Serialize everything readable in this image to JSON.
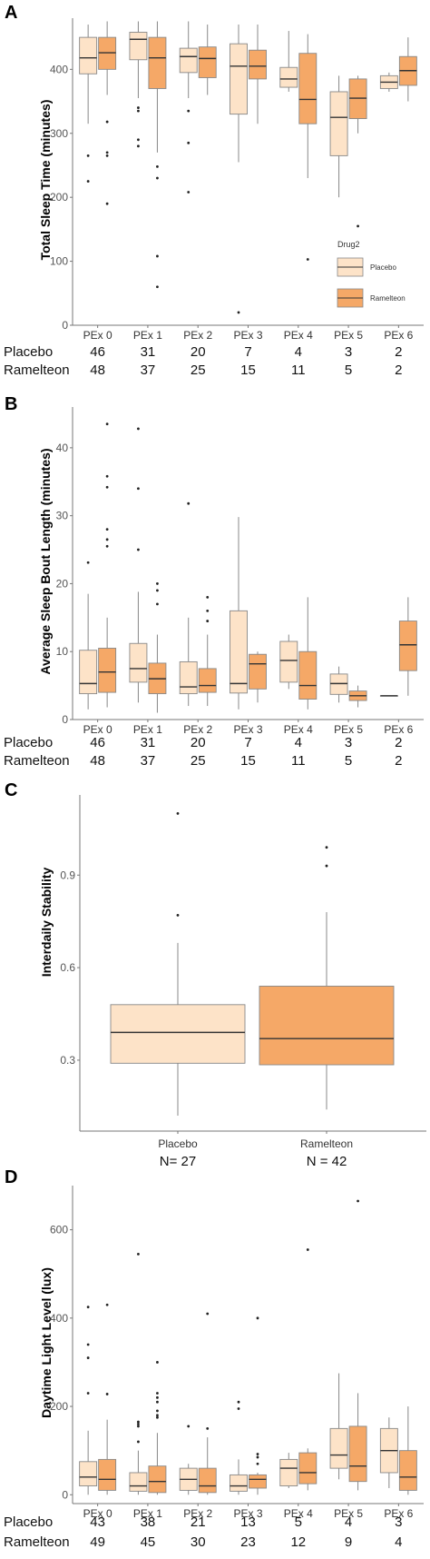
{
  "colors": {
    "placebo": "#fde3c8",
    "ramelteon": "#f5a867",
    "whisker": "#888888",
    "median": "#333333",
    "axis": "#777777"
  },
  "chart_data": [
    {
      "panel": "A",
      "type": "box",
      "ylabel": "Total Sleep Time (minutes)",
      "ylim": [
        0,
        480
      ],
      "yticks": [
        0,
        100,
        200,
        300,
        400
      ],
      "categories": [
        "PEx 0",
        "PEx 1",
        "PEx 2",
        "PEx 3",
        "PEx 4",
        "PEx 5",
        "PEx 6"
      ],
      "legend": {
        "title": "Drug2",
        "position": "right"
      },
      "series": [
        {
          "name": "Placebo",
          "color": "#fde3c8",
          "boxes": [
            {
              "min": 315,
              "q1": 393,
              "median": 418,
              "q3": 450,
              "max": 470,
              "outliers": [
                265,
                225
              ]
            },
            {
              "min": 355,
              "q1": 415,
              "median": 447,
              "q3": 458,
              "max": 475,
              "outliers": [
                340,
                335,
                290,
                280
              ]
            },
            {
              "min": 355,
              "q1": 395,
              "median": 420,
              "q3": 433,
              "max": 475,
              "outliers": [
                335,
                285,
                208
              ]
            },
            {
              "min": 255,
              "q1": 330,
              "median": 405,
              "q3": 440,
              "max": 470,
              "outliers": [
                20
              ]
            },
            {
              "min": 365,
              "q1": 372,
              "median": 385,
              "q3": 403,
              "max": 460,
              "outliers": []
            },
            {
              "min": 200,
              "q1": 265,
              "median": 325,
              "q3": 365,
              "max": 390,
              "outliers": []
            },
            {
              "min": 365,
              "q1": 370,
              "median": 380,
              "q3": 390,
              "max": 395,
              "outliers": []
            }
          ]
        },
        {
          "name": "Ramelteon",
          "color": "#f5a867",
          "boxes": [
            {
              "min": 360,
              "q1": 400,
              "median": 426,
              "q3": 450,
              "max": 475,
              "outliers": [
                318,
                270,
                265,
                190
              ]
            },
            {
              "min": 270,
              "q1": 370,
              "median": 418,
              "q3": 450,
              "max": 475,
              "outliers": [
                248,
                230,
                108,
                60
              ]
            },
            {
              "min": 360,
              "q1": 387,
              "median": 417,
              "q3": 435,
              "max": 470,
              "outliers": []
            },
            {
              "min": 315,
              "q1": 385,
              "median": 405,
              "q3": 430,
              "max": 470,
              "outliers": []
            },
            {
              "min": 230,
              "q1": 315,
              "median": 353,
              "q3": 425,
              "max": 455,
              "outliers": [
                103
              ]
            },
            {
              "min": 300,
              "q1": 323,
              "median": 355,
              "q3": 385,
              "max": 390,
              "outliers": [
                155
              ]
            },
            {
              "min": 350,
              "q1": 375,
              "median": 398,
              "q3": 420,
              "max": 450,
              "outliers": []
            }
          ]
        }
      ],
      "counts": {
        "Placebo": [
          "46",
          "31",
          "20",
          "7",
          "4",
          "3",
          "2"
        ],
        "Ramelteon": [
          "48",
          "37",
          "25",
          "15",
          "11",
          "5",
          "2"
        ]
      }
    },
    {
      "panel": "B",
      "type": "box",
      "ylabel": "Average Sleep Bout Length (minutes)",
      "ylim": [
        0,
        46
      ],
      "yticks": [
        0,
        10,
        20,
        30,
        40
      ],
      "categories": [
        "PEx 0",
        "PEx 1",
        "PEx 2",
        "PEx 3",
        "PEx 4",
        "PEx 5",
        "PEx 6"
      ],
      "series": [
        {
          "name": "Placebo",
          "color": "#fde3c8",
          "boxes": [
            {
              "min": 1.5,
              "q1": 3.8,
              "median": 5.3,
              "q3": 10.2,
              "max": 18.5,
              "outliers": [
                23.1
              ]
            },
            {
              "min": 2.5,
              "q1": 5.5,
              "median": 7.5,
              "q3": 11.2,
              "max": 18.8,
              "outliers": [
                42.8,
                34,
                25
              ]
            },
            {
              "min": 2,
              "q1": 3.8,
              "median": 4.8,
              "q3": 8.5,
              "max": 15,
              "outliers": [
                31.8
              ]
            },
            {
              "min": 1.5,
              "q1": 3.9,
              "median": 5.3,
              "q3": 16,
              "max": 29.8,
              "outliers": []
            },
            {
              "min": 4.5,
              "q1": 5.5,
              "median": 8.7,
              "q3": 11.5,
              "max": 12.5,
              "outliers": []
            },
            {
              "min": 2.5,
              "q1": 3.7,
              "median": 5.3,
              "q3": 6.7,
              "max": 7.8,
              "outliers": []
            },
            {
              "min": 3.5,
              "q1": 3.5,
              "median": 3.5,
              "q3": 3.5,
              "max": 3.5,
              "outliers": []
            }
          ]
        },
        {
          "name": "Ramelteon",
          "color": "#f5a867",
          "boxes": [
            {
              "min": 1.8,
              "q1": 4,
              "median": 7,
              "q3": 10.5,
              "max": 15,
              "outliers": [
                43.5,
                35.8,
                34.2,
                28,
                26.5,
                25.5
              ]
            },
            {
              "min": 1,
              "q1": 3.8,
              "median": 6,
              "q3": 8.3,
              "max": 12.5,
              "outliers": [
                20,
                19,
                17
              ]
            },
            {
              "min": 2,
              "q1": 4,
              "median": 5,
              "q3": 7.5,
              "max": 12.5,
              "outliers": [
                18,
                16,
                14.5
              ]
            },
            {
              "min": 2.5,
              "q1": 4.5,
              "median": 8.2,
              "q3": 9.6,
              "max": 10,
              "outliers": []
            },
            {
              "min": 1.5,
              "q1": 3,
              "median": 5,
              "q3": 10,
              "max": 18,
              "outliers": []
            },
            {
              "min": 1.8,
              "q1": 2.8,
              "median": 3.5,
              "q3": 4.2,
              "max": 5,
              "outliers": []
            },
            {
              "min": 3.5,
              "q1": 7.2,
              "median": 11,
              "q3": 14.5,
              "max": 18,
              "outliers": []
            }
          ]
        }
      ],
      "counts": {
        "Placebo": [
          "46",
          "31",
          "20",
          "7",
          "4",
          "3",
          "2"
        ],
        "Ramelteon": [
          "48",
          "37",
          "25",
          "15",
          "11",
          "5",
          "2"
        ]
      }
    },
    {
      "panel": "C",
      "type": "box",
      "ylabel": "Interdaily Stability",
      "ylim": [
        0.07,
        1.16
      ],
      "yticks": [
        0.3,
        0.6,
        0.9
      ],
      "categories": [
        "Placebo",
        "Ramelteon"
      ],
      "counts_labels": [
        "N= 27",
        "N = 42"
      ],
      "boxes": [
        {
          "name": "Placebo",
          "color": "#fde3c8",
          "min": 0.12,
          "q1": 0.29,
          "median": 0.39,
          "q3": 0.48,
          "max": 0.68,
          "outliers": [
            1.1,
            0.77
          ]
        },
        {
          "name": "Ramelteon",
          "color": "#f5a867",
          "min": 0.14,
          "q1": 0.285,
          "median": 0.37,
          "q3": 0.54,
          "max": 0.78,
          "outliers": [
            0.99,
            0.93
          ]
        }
      ]
    },
    {
      "panel": "D",
      "type": "box",
      "ylabel": "Daytime Light Level (lux)",
      "ylim": [
        -20,
        700
      ],
      "yticks": [
        0,
        200,
        400,
        600
      ],
      "categories": [
        "PEx 0",
        "PEx 1",
        "PEx 2",
        "PEx 3",
        "PEx 4",
        "PEx 5",
        "PEx 6"
      ],
      "series": [
        {
          "name": "Placebo",
          "color": "#fde3c8",
          "boxes": [
            {
              "min": 0,
              "q1": 20,
              "median": 40,
              "q3": 75,
              "max": 145,
              "outliers": [
                425,
                340,
                310,
                230
              ]
            },
            {
              "min": 0,
              "q1": 8,
              "median": 20,
              "q3": 50,
              "max": 100,
              "outliers": [
                545,
                165,
                160,
                155,
                120
              ]
            },
            {
              "min": 0,
              "q1": 10,
              "median": 35,
              "q3": 60,
              "max": 70,
              "outliers": [
                155
              ]
            },
            {
              "min": 0,
              "q1": 8,
              "median": 20,
              "q3": 45,
              "max": 80,
              "outliers": [
                210,
                195
              ]
            },
            {
              "min": 15,
              "q1": 20,
              "median": 60,
              "q3": 80,
              "max": 95,
              "outliers": []
            },
            {
              "min": 35,
              "q1": 60,
              "median": 90,
              "q3": 150,
              "max": 275,
              "outliers": []
            },
            {
              "min": 15,
              "q1": 50,
              "median": 100,
              "q3": 150,
              "max": 175,
              "outliers": []
            }
          ]
        },
        {
          "name": "Ramelteon",
          "color": "#f5a867",
          "boxes": [
            {
              "min": 0,
              "q1": 10,
              "median": 35,
              "q3": 80,
              "max": 170,
              "outliers": [
                430,
                228
              ]
            },
            {
              "min": 0,
              "q1": 5,
              "median": 30,
              "q3": 65,
              "max": 140,
              "outliers": [
                300,
                230,
                220,
                210,
                190,
                180,
                175
              ]
            },
            {
              "min": 0,
              "q1": 5,
              "median": 20,
              "q3": 60,
              "max": 130,
              "outliers": [
                410,
                150
              ]
            },
            {
              "min": 0,
              "q1": 15,
              "median": 35,
              "q3": 45,
              "max": 50,
              "outliers": [
                400,
                92,
                85,
                70
              ]
            },
            {
              "min": 10,
              "q1": 25,
              "median": 50,
              "q3": 95,
              "max": 105,
              "outliers": [
                555
              ]
            },
            {
              "min": 10,
              "q1": 30,
              "median": 65,
              "q3": 155,
              "max": 230,
              "outliers": [
                665
              ]
            },
            {
              "min": 0,
              "q1": 10,
              "median": 40,
              "q3": 100,
              "max": 200,
              "outliers": []
            }
          ]
        }
      ],
      "counts": {
        "Placebo": [
          "43",
          "38",
          "21",
          "13",
          "5",
          "4",
          "3"
        ],
        "Ramelteon": [
          "49",
          "45",
          "30",
          "23",
          "12",
          "9",
          "4"
        ]
      }
    }
  ]
}
